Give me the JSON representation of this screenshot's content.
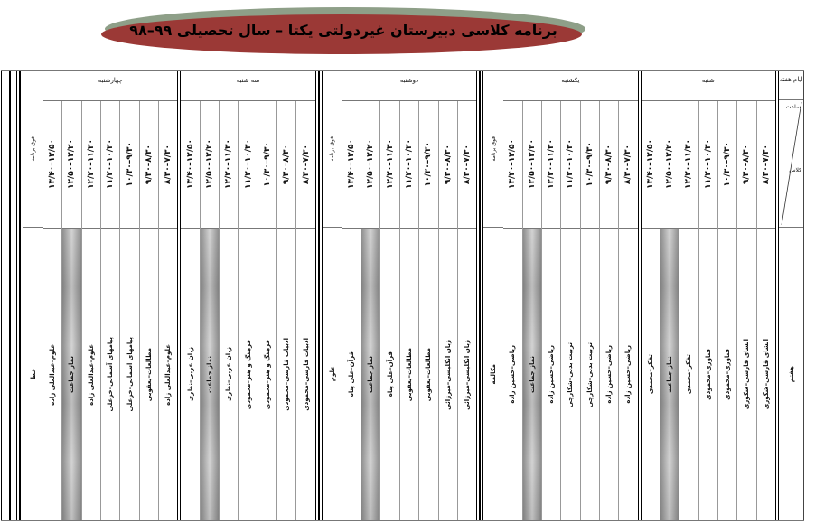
{
  "title": "برنامه کلاسی دبیرستان غیردولتی یکتا – سال تحصیلی ۹۹–۹۸",
  "colors": {
    "banner_fill": "#9b3936",
    "banner_edge": "#8e9f88",
    "prayer_shade": "#b0b0b0"
  },
  "header_column": {
    "days_label": "ایام هفته",
    "time_label": "ساعت",
    "class_label": "کلاس",
    "class_name": "هفتم"
  },
  "times": [
    "۷/۳۰–۸/۳۰",
    "۸/۳۰–۹/۳۰",
    "۹/۳۰–۱۰/۳۰",
    "۱۰/۳۰–۱۱/۲۰",
    "۱۱/۳۰–۱۲/۲۰",
    "۱۲/۲۰–۱۲/۵۰",
    "۱۲/۵۰–۱۳/۴۰"
  ],
  "prayer_period_index": 5,
  "days": [
    {
      "name": "شنبه",
      "periods": [
        "انشای فارسی–شکوری",
        "انشای فارسی–شکوری",
        "فناوری–محمودی",
        "فناوری–محمودی",
        "تفکر–محمدی",
        "نماز جماعت",
        "تفکر–محمدی"
      ]
    },
    {
      "name": "یکشنبه",
      "extra": {
        "label": "فوق برنامه",
        "subject": "مکالمه"
      },
      "periods": [
        "ریاضی–حسین زاده",
        "ریاضی–حسین زاده",
        "تربیت بدنی–شکارچی",
        "تربیت بدنی–شکارچی",
        "ریاضی–حسین زاده",
        "نماز جماعت",
        "ریاضی–حسین زاده"
      ]
    },
    {
      "name": "دوشنبه",
      "extra": {
        "label": "فوق برنامه",
        "subject": "علوم"
      },
      "periods": [
        "زبان انگلیسی–میرزائی",
        "زبان انگلیسی–میرزائی",
        "مطالعات–یعقوبی",
        "مطالعات–یعقوبی",
        "قرآن–علی پناه",
        "نماز جماعت",
        "قرآن–علی پناه"
      ]
    },
    {
      "name": "سه شنبه",
      "periods": [
        "ادبیات فارسی–محمودی",
        "ادبیات فارسی–محمودی",
        "فرهنگ و هنر–محمودی",
        "فرهنگ و هنر–محمودی",
        "زبان عربی–نظری",
        "نماز جماعت",
        "زبان عربی–نظری"
      ]
    },
    {
      "name": "چهارشنبه",
      "extra": {
        "label": "فوق برنامه",
        "subject": "خط"
      },
      "periods": [
        "علوم–عبدالعلی زاده",
        "مطالعات–یعقوبی",
        "پیامهای آسمانی–خزعلی",
        "پیامهای آسمانی–خزعلی",
        "علوم–عبدالعلی زاده",
        "نماز جماعت",
        "علوم–عبدالعلی زاده"
      ]
    }
  ]
}
